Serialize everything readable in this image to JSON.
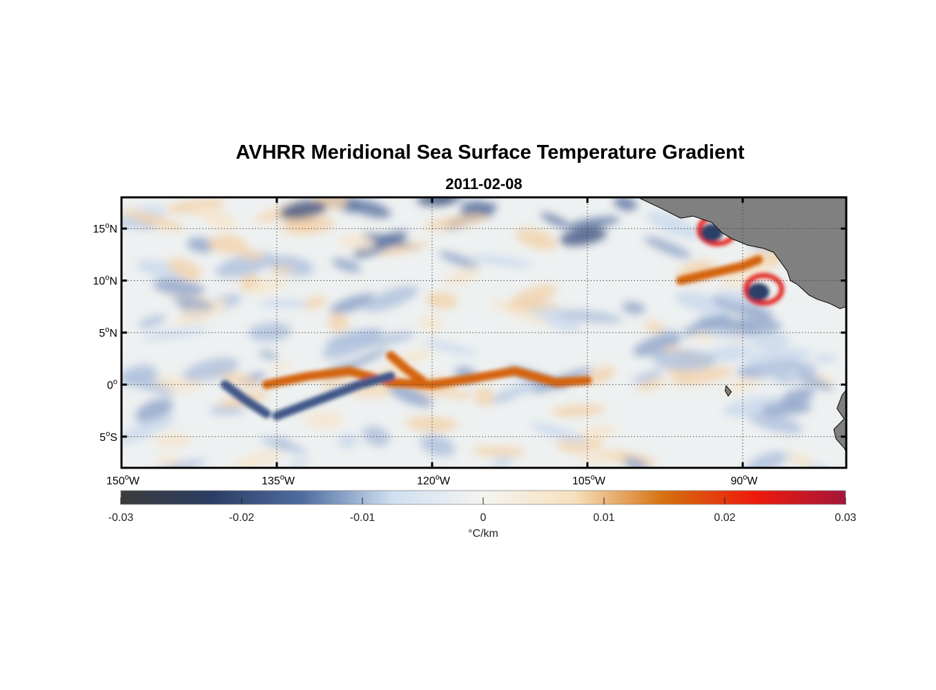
{
  "title": "AVHRR Meridional Sea Surface Temperature Gradient",
  "subtitle": "2011-02-08",
  "map": {
    "projection": "equirectangular",
    "lon_range": [
      -150,
      -80
    ],
    "lat_range": [
      -8,
      18
    ],
    "grid": "dotted",
    "land_color": "#808080",
    "lat_ticks": [
      {
        "value": 15,
        "label": "15",
        "suffix": "N"
      },
      {
        "value": 10,
        "label": "10",
        "suffix": "N"
      },
      {
        "value": 5,
        "label": "5",
        "suffix": "N"
      },
      {
        "value": 0,
        "label": "0",
        "suffix": ""
      },
      {
        "value": -5,
        "label": "5",
        "suffix": "S"
      }
    ],
    "lon_ticks": [
      {
        "value": -150,
        "label": "150",
        "suffix": "W"
      },
      {
        "value": -135,
        "label": "135",
        "suffix": "W"
      },
      {
        "value": -120,
        "label": "120",
        "suffix": "W"
      },
      {
        "value": -105,
        "label": "105",
        "suffix": "W"
      },
      {
        "value": -90,
        "label": "90",
        "suffix": "W"
      }
    ]
  },
  "colorbar": {
    "range": [
      -0.03,
      0.03
    ],
    "tick_values": [
      -0.03,
      -0.02,
      -0.01,
      0,
      0.01,
      0.02,
      0.03
    ],
    "tick_labels": [
      "-0.03",
      "-0.02",
      "-0.01",
      "0",
      "0.01",
      "0.02",
      "0.03"
    ],
    "label": "°C/km",
    "colors": [
      "#3b3b3b",
      "#2a3d64",
      "#4f6ca0",
      "#cfe0f2",
      "#f4f4f0",
      "#f7e1bf",
      "#d6700f",
      "#ee1a0c",
      "#a5163a"
    ]
  },
  "features": [
    {
      "kind": "front",
      "sign": "positive",
      "name": "equatorial-warm-front",
      "lons": [
        -136,
        -132,
        -128,
        -124,
        -120,
        -116,
        -112,
        -108,
        -105
      ],
      "lats": [
        0.0,
        0.8,
        1.3,
        0.2,
        0.0,
        0.6,
        1.3,
        0.2,
        0.4
      ]
    },
    {
      "kind": "front",
      "sign": "positive",
      "name": "equatorial-upturn",
      "lons": [
        -124,
        -122.5,
        -121
      ],
      "lats": [
        2.8,
        1.5,
        0.4
      ]
    },
    {
      "kind": "front",
      "sign": "negative",
      "name": "south-equatorial-cold-band",
      "lons": [
        -135,
        -131,
        -127,
        -124
      ],
      "lats": [
        -3.0,
        -1.5,
        0.0,
        0.8
      ]
    },
    {
      "kind": "front",
      "sign": "negative",
      "name": "diagonal-cold-band",
      "lons": [
        -140,
        -138,
        -136
      ],
      "lats": [
        0.0,
        -1.5,
        -2.8
      ]
    },
    {
      "kind": "front",
      "sign": "positive",
      "name": "gulf-of-panama-front",
      "lons": [
        -96,
        -93,
        -90,
        -88.5
      ],
      "lats": [
        10.0,
        10.7,
        11.4,
        12.0
      ]
    },
    {
      "kind": "eddy",
      "sign": "negative",
      "name": "tehuantepec-eddy",
      "lon": -93,
      "lat": 14.6
    },
    {
      "kind": "eddy",
      "sign": "negative",
      "name": "papagayo-eddy",
      "lon": -88.5,
      "lat": 8.9
    }
  ]
}
